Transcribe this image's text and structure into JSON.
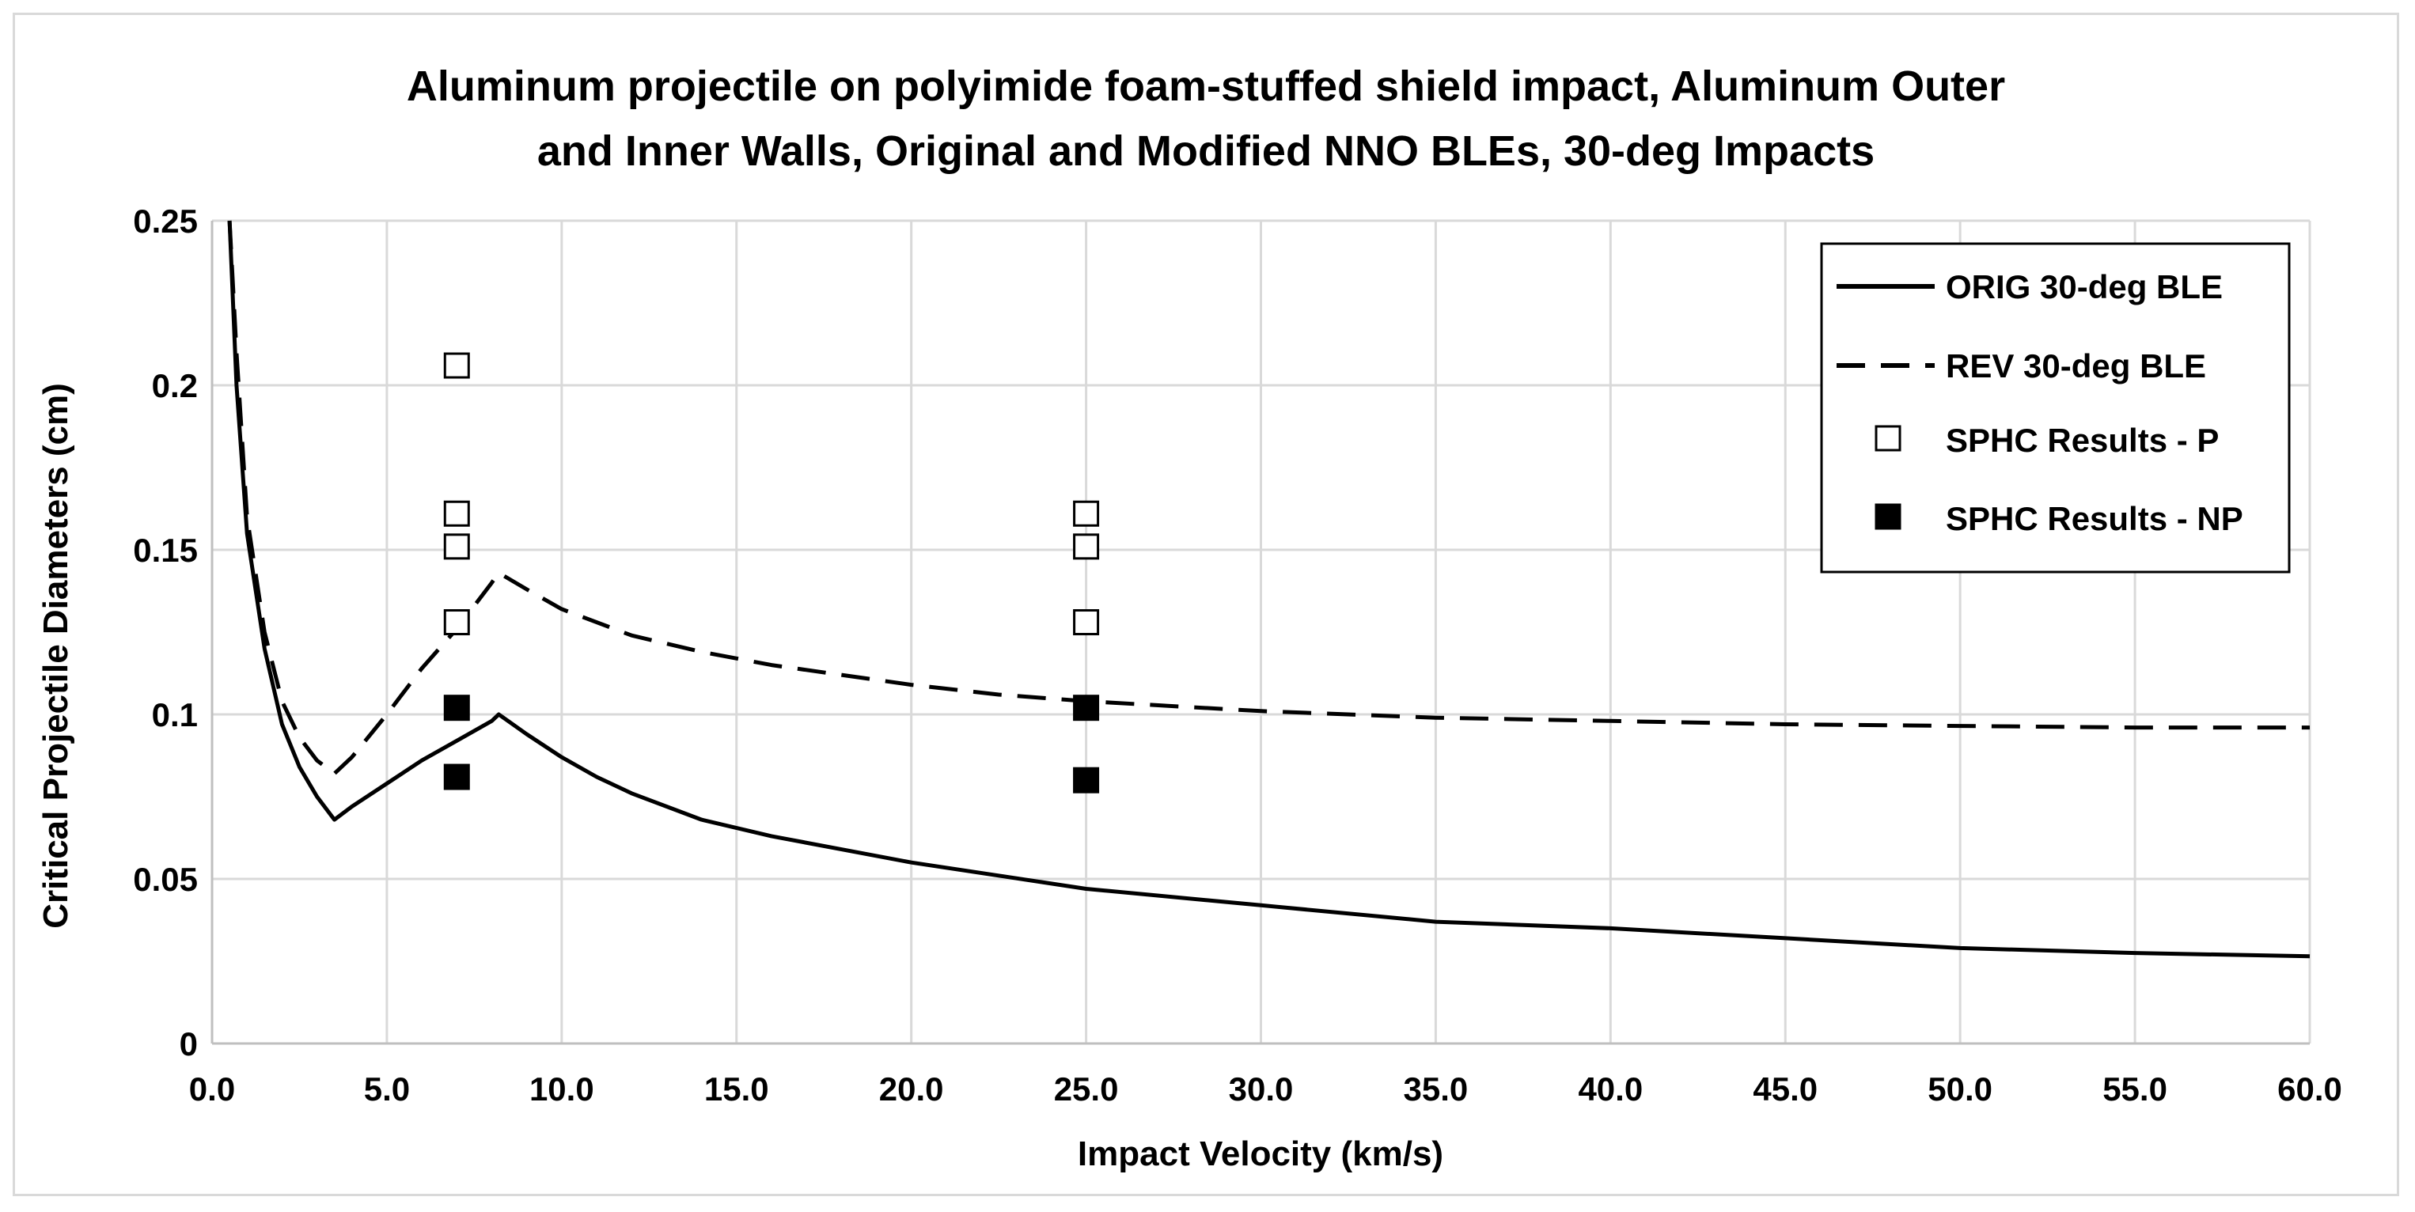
{
  "chart_data": {
    "type": "line",
    "title_lines": [
      "Aluminum projectile on polyimide foam-stuffed shield impact, Aluminum Outer",
      "and Inner Walls, Original and Modified NNO BLEs, 30-deg Impacts"
    ],
    "xlabel": "Impact Velocity (km/s)",
    "ylabel": "Critical Projectile Diameters (cm)",
    "xlim": [
      0,
      60
    ],
    "ylim": [
      0,
      0.25
    ],
    "x_ticks": [
      0,
      5,
      10,
      15,
      20,
      25,
      30,
      35,
      40,
      45,
      50,
      55,
      60
    ],
    "x_tick_labels": [
      "0.0",
      "5.0",
      "10.0",
      "15.0",
      "20.0",
      "25.0",
      "30.0",
      "35.0",
      "40.0",
      "45.0",
      "50.0",
      "55.0",
      "60.0"
    ],
    "y_ticks": [
      0,
      0.05,
      0.1,
      0.15,
      0.2,
      0.25
    ],
    "y_tick_labels": [
      "0",
      "0.05",
      "0.1",
      "0.15",
      "0.2",
      "0.25"
    ],
    "grid": true,
    "legend_position": "top-right",
    "series": [
      {
        "name": "ORIG 30-deg BLE",
        "kind": "line",
        "style": "solid",
        "x": [
          0.5,
          0.7,
          1.0,
          1.5,
          2.0,
          2.5,
          3.0,
          3.5,
          4.0,
          5.0,
          6.0,
          7.0,
          7.5,
          8.0,
          8.2,
          9.0,
          10.0,
          11.0,
          12.0,
          14.0,
          16.0,
          18.0,
          20.0,
          22.5,
          25.0,
          30.0,
          35.0,
          40.0,
          45.0,
          50.0,
          55.0,
          60.0
        ],
        "y": [
          0.25,
          0.2,
          0.155,
          0.12,
          0.097,
          0.084,
          0.075,
          0.068,
          0.072,
          0.079,
          0.086,
          0.092,
          0.095,
          0.098,
          0.1,
          0.094,
          0.087,
          0.081,
          0.076,
          0.068,
          0.063,
          0.059,
          0.055,
          0.051,
          0.047,
          0.042,
          0.037,
          0.035,
          0.032,
          0.029,
          0.0275,
          0.0265
        ]
      },
      {
        "name": "REV 30-deg BLE",
        "kind": "line",
        "style": "dashed",
        "x": [
          0.5,
          0.7,
          1.0,
          1.5,
          2.0,
          2.5,
          3.0,
          3.5,
          4.0,
          5.0,
          6.0,
          7.0,
          8.0,
          8.2,
          9.0,
          10.0,
          12.0,
          14.0,
          16.0,
          18.0,
          20.0,
          22.5,
          25.0,
          30.0,
          35.0,
          40.0,
          45.0,
          50.0,
          55.0,
          60.0
        ],
        "y": [
          0.25,
          0.21,
          0.16,
          0.125,
          0.104,
          0.093,
          0.086,
          0.082,
          0.087,
          0.1,
          0.114,
          0.126,
          0.14,
          0.143,
          0.138,
          0.132,
          0.124,
          0.119,
          0.115,
          0.112,
          0.109,
          0.106,
          0.104,
          0.101,
          0.099,
          0.098,
          0.097,
          0.0965,
          0.096,
          0.096
        ]
      },
      {
        "name": "SPHC Results - P",
        "kind": "scatter",
        "marker": "hollow-square",
        "x": [
          7,
          7,
          7,
          7,
          25,
          25,
          25
        ],
        "y": [
          0.206,
          0.161,
          0.151,
          0.128,
          0.161,
          0.151,
          0.128
        ]
      },
      {
        "name": "SPHC Results - NP",
        "kind": "scatter",
        "marker": "filled-square",
        "x": [
          7,
          7,
          25,
          25
        ],
        "y": [
          0.102,
          0.081,
          0.102,
          0.08
        ]
      }
    ],
    "colors": {
      "line": "#000000",
      "grid": "#d9d9d9",
      "frame": "#d9d9d9",
      "background": "#ffffff"
    }
  }
}
